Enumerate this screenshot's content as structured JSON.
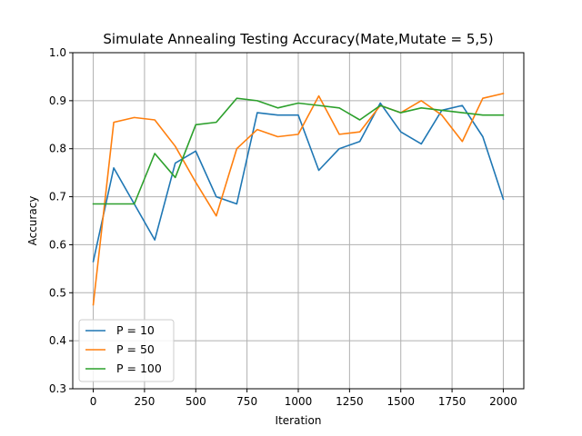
{
  "chart_data": {
    "type": "line",
    "title": "Simulate Annealing Testing Accuracy(Mate,Mutate = 5,5)",
    "xlabel": "Iteration",
    "ylabel": "Accuracy",
    "xlim": [
      -100,
      2100
    ],
    "ylim": [
      0.3,
      1.0
    ],
    "xticks": [
      0,
      250,
      500,
      750,
      1000,
      1250,
      1500,
      1750,
      2000
    ],
    "xtick_labels": [
      "0",
      "250",
      "500",
      "750",
      "1000",
      "1250",
      "1500",
      "1750",
      "2000"
    ],
    "yticks": [
      0.3,
      0.4,
      0.5,
      0.6,
      0.7,
      0.8,
      0.9,
      1.0
    ],
    "ytick_labels": [
      "0.3",
      "0.4",
      "0.5",
      "0.6",
      "0.7",
      "0.8",
      "0.9",
      "1.0"
    ],
    "grid": true,
    "legend_position": "lower-left",
    "x": [
      0,
      100,
      200,
      300,
      400,
      500,
      600,
      700,
      800,
      900,
      1000,
      1100,
      1200,
      1300,
      1400,
      1500,
      1600,
      1700,
      1800,
      1900,
      2000
    ],
    "series": [
      {
        "name": "P = 10",
        "color": "#1f77b4",
        "values": [
          0.565,
          0.76,
          0.685,
          0.61,
          0.77,
          0.795,
          0.7,
          0.685,
          0.875,
          0.87,
          0.87,
          0.755,
          0.8,
          0.815,
          0.895,
          0.835,
          0.81,
          0.88,
          0.89,
          0.825,
          0.695
        ]
      },
      {
        "name": "P = 50",
        "color": "#ff7f0e",
        "values": [
          0.475,
          0.855,
          0.865,
          0.86,
          0.805,
          0.73,
          0.66,
          0.8,
          0.84,
          0.825,
          0.83,
          0.91,
          0.83,
          0.835,
          0.89,
          0.875,
          0.9,
          0.87,
          0.815,
          0.905,
          0.915
        ]
      },
      {
        "name": "P = 100",
        "color": "#2ca02c",
        "values": [
          0.685,
          0.685,
          0.685,
          0.79,
          0.74,
          0.85,
          0.855,
          0.905,
          0.9,
          0.885,
          0.895,
          0.89,
          0.885,
          0.86,
          0.89,
          0.875,
          0.885,
          0.88,
          0.875,
          0.87,
          0.87
        ]
      }
    ]
  }
}
